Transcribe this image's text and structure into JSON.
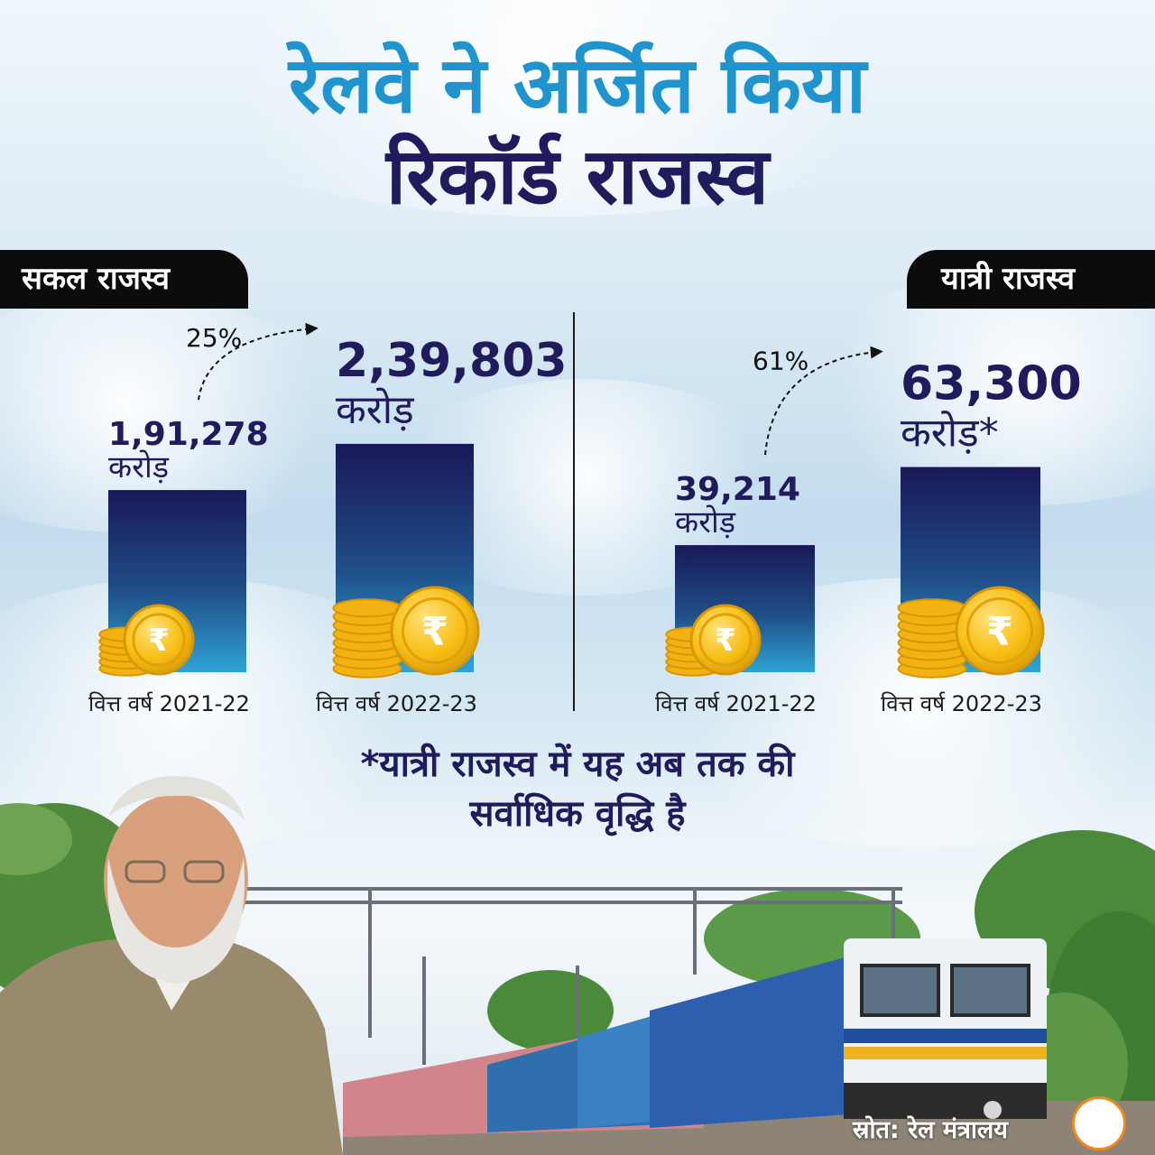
{
  "title": {
    "line1": "रेलवे ने अर्जित किया",
    "line2": "रिकॉर्ड राजस्व"
  },
  "chart_data": [
    {
      "type": "bar",
      "title": "सकल राजस्व",
      "categories": [
        "वित्त वर्ष 2021-22",
        "वित्त वर्ष 2022-23"
      ],
      "values": [
        191278,
        239803
      ],
      "value_labels": [
        "1,91,278",
        "2,39,803"
      ],
      "unit_labels": [
        "करोड़",
        "करोड़"
      ],
      "growth_label": "25%"
    },
    {
      "type": "bar",
      "title": "यात्री राजस्व",
      "categories": [
        "वित्त वर्ष 2021-22",
        "वित्त वर्ष 2022-23"
      ],
      "values": [
        39214,
        63300
      ],
      "value_labels": [
        "39,214",
        "63,300"
      ],
      "unit_labels": [
        "करोड़",
        "करोड़*"
      ],
      "growth_label": "61%"
    }
  ],
  "footnote": {
    "line1": "*यात्री राजस्व में यह अब तक की",
    "line2": "सर्वाधिक वृद्धि है"
  },
  "coin_symbol": "₹",
  "source": "स्रोत: रेल मंत्रालय",
  "colors": {
    "title_blue": "#1f94cf",
    "title_navy": "#1f1b5c",
    "bar_top": "#1a1858",
    "bar_bottom": "#2ea3d6",
    "coin_gold": "#f4b70f",
    "label_navy": "#1f1b5c"
  }
}
